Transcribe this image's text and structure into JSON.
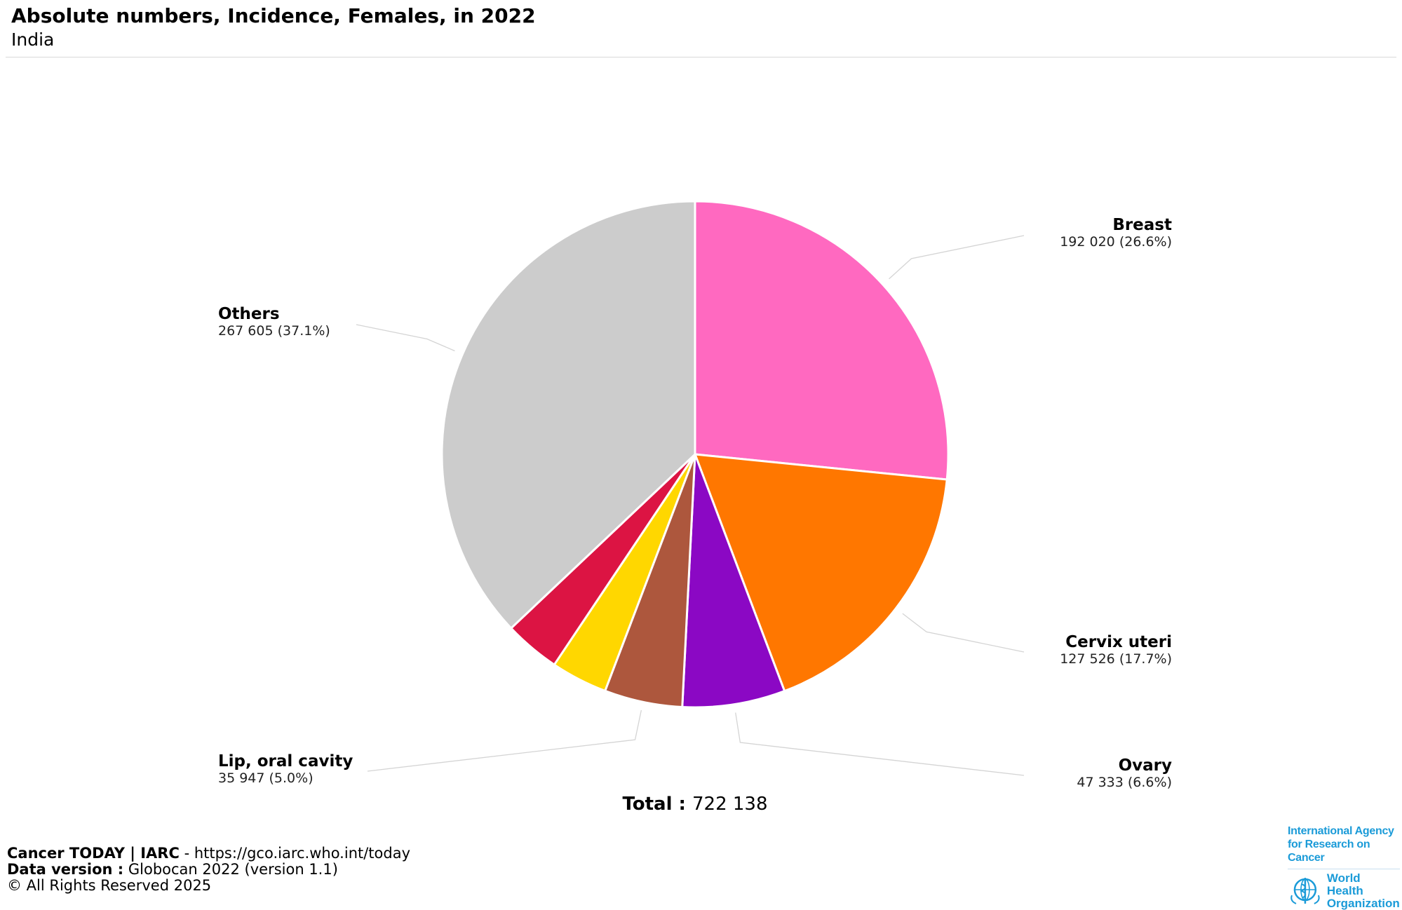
{
  "header": {
    "title": "Absolute numbers, Incidence, Females, in 2022",
    "subtitle": "India"
  },
  "chart_data": {
    "type": "pie",
    "title": "Absolute numbers, Incidence, Females, in 2022",
    "subtitle": "India",
    "total_label": "Total :",
    "total_value": "722 138",
    "slices": [
      {
        "name": "Breast",
        "value": 192020,
        "display": "192 020 (26.6%)",
        "color": "#ff69c0",
        "labeled": true
      },
      {
        "name": "Cervix uteri",
        "value": 127526,
        "display": "127 526 (17.7%)",
        "color": "#ff7700",
        "labeled": true
      },
      {
        "name": "Ovary",
        "value": 47333,
        "display": "47 333 (6.6%)",
        "color": "#8b08c4",
        "labeled": true
      },
      {
        "name": "Lip, oral cavity",
        "value": 35947,
        "display": "35 947 (5.0%)",
        "color": "#ad573d",
        "labeled": true
      },
      {
        "name": "",
        "value": 26000,
        "display": "",
        "color": "#ffd700",
        "labeled": false
      },
      {
        "name": "",
        "value": 25707,
        "display": "",
        "color": "#dc1443",
        "labeled": false
      },
      {
        "name": "Others",
        "value": 267605,
        "display": "267 605 (37.1%)",
        "color": "#cccccc",
        "labeled": true
      }
    ]
  },
  "footer": {
    "source_bold": "Cancer TODAY | IARC",
    "source_rest": " - https://gco.iarc.who.int/today",
    "version_bold": "Data version :",
    "version_rest": " Globocan 2022 (version 1.1)",
    "copyright": "© All Rights Reserved 2025"
  },
  "logos": {
    "iarc_line1": "International Agency",
    "iarc_line2": "for Research on Cancer",
    "who_line1": "World Health",
    "who_line2": "Organization"
  }
}
